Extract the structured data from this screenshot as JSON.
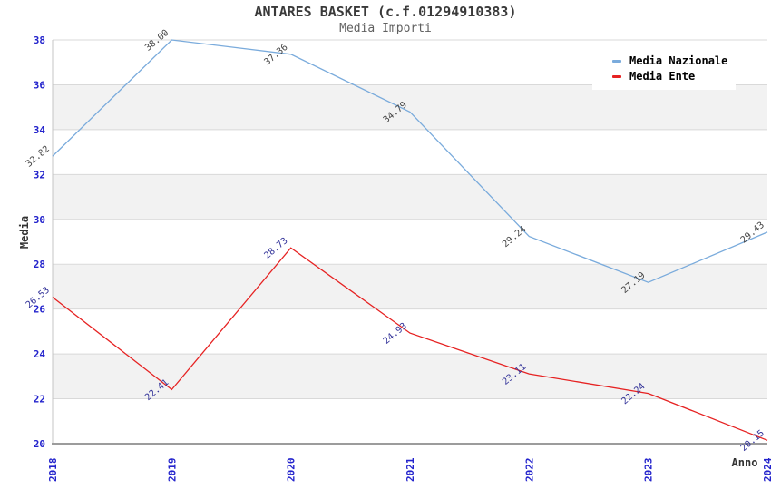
{
  "chart_data": {
    "type": "line",
    "title": "ANTARES BASKET (c.f.01294910383)",
    "subtitle": "Media Importi",
    "x_categories": [
      "2018",
      "2019",
      "2020",
      "2021",
      "2022",
      "2023",
      "2024"
    ],
    "series": [
      {
        "name": "Media Nazionale",
        "color": "#7aabdc",
        "label_color": "#444444",
        "values": [
          32.82,
          38.0,
          37.36,
          34.79,
          29.24,
          27.19,
          29.43
        ]
      },
      {
        "name": "Media Ente",
        "color": "#e62222",
        "label_color": "#333399",
        "values": [
          26.53,
          22.41,
          28.73,
          24.93,
          23.11,
          22.24,
          20.15
        ]
      }
    ],
    "xlabel": "Anno",
    "ylabel": "Media",
    "ylim": [
      20,
      38
    ],
    "ytick_step": 2,
    "yticks": [
      20,
      22,
      24,
      26,
      28,
      30,
      32,
      34,
      36,
      38
    ],
    "grid": true,
    "legend_position": "top-right",
    "value_label_rotation": -40,
    "styles": {
      "band_color": "#f2f2f2",
      "grid_color": "#d9d9d9",
      "axis_color": "#9c9c9c",
      "left_axis_color": "#c4c4c4",
      "tick_label_color": "#2323cc",
      "axis_title_color": "#333333",
      "background": "#ffffff"
    }
  }
}
